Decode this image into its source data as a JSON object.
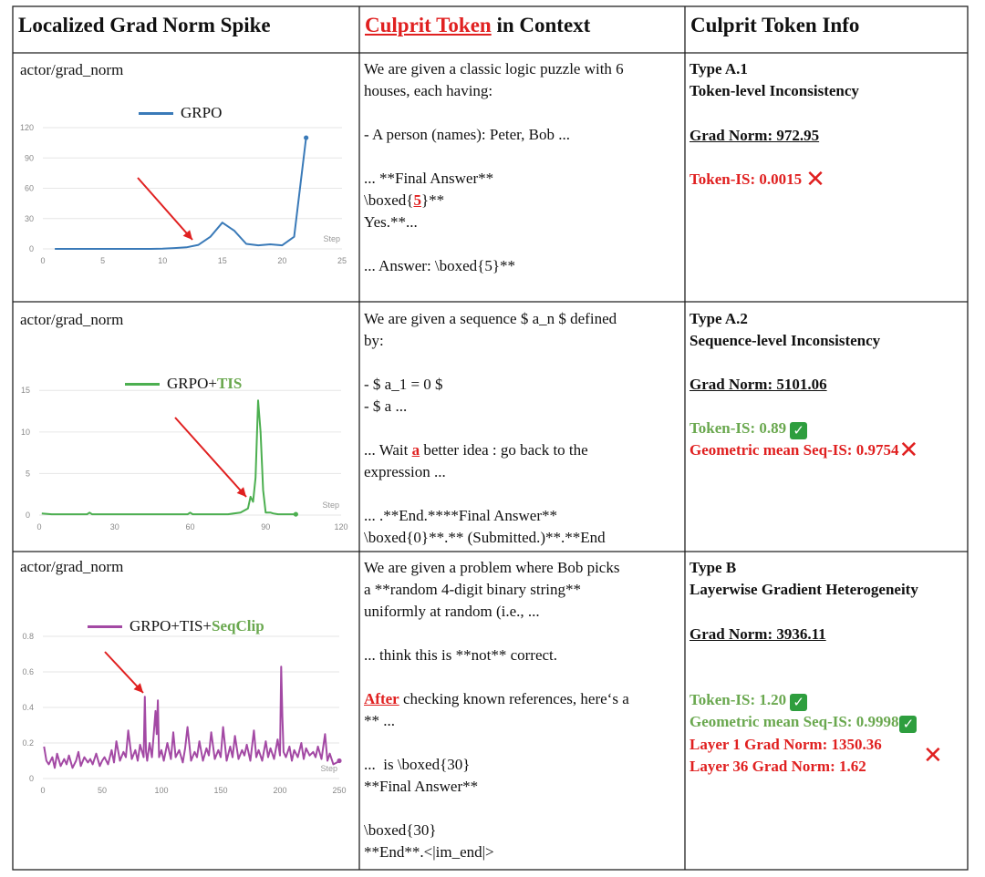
{
  "headers": {
    "col1": "Localized Grad Norm Spike",
    "col2_red": "Culprit Token",
    "col2_rest": " in Context",
    "col3": "Culprit Token Info"
  },
  "rows": [
    {
      "chart_title": "actor/grad_norm",
      "legend_label": "GRPO",
      "context": {
        "l1": "We are given a classic logic puzzle with 6",
        "l2": "houses, each having:",
        "l3": "- A person (names): Peter, Bob ...",
        "l4": "... **Final Answer**",
        "l5a": "\\boxed{",
        "l5tok": "5",
        "l5b": "}**",
        "l6": "Yes.**...",
        "l7": "... Answer: \\boxed{5}**"
      },
      "info": {
        "type": "Type A.1",
        "desc": "Token-level Inconsistency",
        "grad_norm": "Grad Norm: 972.95",
        "token_is": "Token-IS: 0.0015"
      }
    },
    {
      "chart_title": "actor/grad_norm",
      "legend_label_base": "GRPO+",
      "legend_label_accent": "TIS",
      "context": {
        "l1": "We are given a sequence $ a_n $ defined",
        "l2": "by:",
        "l3": "- $ a_1 = 0 $",
        "l4": "- $ a ...",
        "l5a": "... Wait ",
        "l5tok": "a",
        "l5b": " better idea : go back to the",
        "l6": "expression ...",
        "l7": "... .**End.****Final Answer**",
        "l8": "\\boxed{0}**.** (Submitted.)**.**End"
      },
      "info": {
        "type": "Type A.2",
        "desc": "Sequence-level Inconsistency",
        "grad_norm": "Grad Norm: 5101.06",
        "token_is": "Token-IS: 0.89",
        "seq_is": "Geometric mean Seq-IS: 0.9754"
      }
    },
    {
      "chart_title": "actor/grad_norm",
      "legend_label_base": "GRPO+TIS+",
      "legend_label_accent": "SeqClip",
      "context": {
        "l1": "We are given a problem where Bob picks",
        "l2": "a **random 4-digit binary string**",
        "l3": "uniformly at random (i.e., ...",
        "l4": "... think this is **not** correct.",
        "l5tok": "After",
        "l5b": " checking known references, here‘s a",
        "l6": "** ...",
        "l7": "...  is \\boxed{30}",
        "l8": "**Final Answer**",
        "l9": "\\boxed{30}",
        "l10": "**End**.<|im_end|>"
      },
      "info": {
        "type": "Type B",
        "desc": "Layerwise Gradient Heterogeneity",
        "grad_norm": "Grad Norm: 3936.11",
        "token_is": "Token-IS: 1.20",
        "seq_is": "Geometric mean Seq-IS: 0.9998",
        "layer1": "Layer 1 Grad Norm: 1350.36",
        "layer36": "Layer 36 Grad Norm: 1.62"
      }
    }
  ],
  "chart_data": [
    {
      "type": "line",
      "title": "actor/grad_norm",
      "xlabel": "Step",
      "ylabel": "",
      "xlim": [
        0,
        25
      ],
      "ylim": [
        0,
        120
      ],
      "xticks": [
        0,
        5,
        10,
        15,
        20,
        25
      ],
      "yticks": [
        0,
        30,
        60,
        90,
        120
      ],
      "color": "#3a7ab8",
      "series": [
        {
          "name": "GRPO",
          "x": [
            1,
            2,
            3,
            4,
            5,
            6,
            7,
            8,
            9,
            10,
            11,
            12,
            13,
            14,
            15,
            16,
            17,
            18,
            19,
            20,
            21,
            22
          ],
          "y": [
            0,
            0,
            0,
            0,
            0,
            0,
            0,
            0,
            0,
            0.3,
            0.8,
            1.5,
            4,
            12,
            26,
            18,
            5,
            3.5,
            4.5,
            3.5,
            12,
            110
          ]
        }
      ]
    },
    {
      "type": "line",
      "title": "actor/grad_norm",
      "xlabel": "Step",
      "ylabel": "",
      "xlim": [
        0,
        120
      ],
      "ylim": [
        0,
        17
      ],
      "xticks": [
        0,
        30,
        60,
        90,
        120
      ],
      "yticks": [
        0,
        5,
        10,
        15
      ],
      "color": "#4caf50",
      "series": [
        {
          "name": "GRPO+TIS",
          "x": [
            1,
            5,
            10,
            15,
            19,
            20,
            21,
            25,
            30,
            35,
            40,
            45,
            50,
            55,
            59,
            60,
            61,
            65,
            70,
            75,
            80,
            83,
            84,
            85,
            86,
            87,
            88,
            89,
            90,
            91,
            92,
            93,
            95,
            98,
            100,
            102
          ],
          "y": [
            0.2,
            0.1,
            0.1,
            0.1,
            0.1,
            0.3,
            0.1,
            0.1,
            0.1,
            0.1,
            0.1,
            0.1,
            0.1,
            0.1,
            0.1,
            0.3,
            0.1,
            0.1,
            0.1,
            0.1,
            0.3,
            0.8,
            2.2,
            1.6,
            4.5,
            13.8,
            10,
            3,
            0.3,
            0.3,
            0.3,
            0.2,
            0.1,
            0.1,
            0.1,
            0.1
          ]
        }
      ]
    },
    {
      "type": "line",
      "title": "actor/grad_norm",
      "xlabel": "Step",
      "ylabel": "",
      "xlim": [
        0,
        250
      ],
      "ylim": [
        0,
        0.8
      ],
      "xticks": [
        0,
        50,
        100,
        150,
        200,
        250
      ],
      "yticks": [
        0,
        0.2,
        0.4,
        0.6,
        0.8
      ],
      "color": "#a349a4",
      "series": [
        {
          "name": "GRPO+TIS+SeqClip",
          "x": [
            1,
            3,
            5,
            8,
            10,
            12,
            15,
            18,
            20,
            22,
            25,
            28,
            30,
            32,
            35,
            38,
            40,
            42,
            45,
            48,
            50,
            52,
            55,
            58,
            60,
            62,
            65,
            68,
            70,
            72,
            75,
            78,
            80,
            82,
            85,
            86,
            87,
            88,
            90,
            92,
            95,
            96,
            97,
            98,
            100,
            102,
            105,
            108,
            110,
            112,
            115,
            118,
            120,
            122,
            125,
            128,
            130,
            132,
            135,
            138,
            140,
            142,
            145,
            148,
            150,
            152,
            155,
            158,
            160,
            162,
            165,
            168,
            170,
            172,
            175,
            178,
            180,
            182,
            185,
            188,
            190,
            192,
            195,
            198,
            200,
            201,
            202,
            203,
            205,
            208,
            210,
            212,
            215,
            218,
            220,
            222,
            225,
            228,
            230,
            232,
            235,
            238,
            240,
            242,
            245,
            248,
            250
          ],
          "y": [
            0.18,
            0.1,
            0.08,
            0.12,
            0.06,
            0.14,
            0.07,
            0.11,
            0.08,
            0.13,
            0.06,
            0.1,
            0.15,
            0.07,
            0.12,
            0.09,
            0.11,
            0.08,
            0.14,
            0.07,
            0.1,
            0.12,
            0.08,
            0.16,
            0.09,
            0.21,
            0.1,
            0.15,
            0.12,
            0.27,
            0.11,
            0.16,
            0.1,
            0.19,
            0.12,
            0.46,
            0.15,
            0.1,
            0.2,
            0.12,
            0.38,
            0.25,
            0.44,
            0.12,
            0.16,
            0.1,
            0.2,
            0.11,
            0.26,
            0.12,
            0.16,
            0.09,
            0.17,
            0.29,
            0.1,
            0.15,
            0.12,
            0.21,
            0.1,
            0.17,
            0.13,
            0.26,
            0.11,
            0.16,
            0.12,
            0.29,
            0.1,
            0.18,
            0.12,
            0.24,
            0.11,
            0.16,
            0.13,
            0.19,
            0.1,
            0.27,
            0.12,
            0.16,
            0.1,
            0.21,
            0.12,
            0.17,
            0.11,
            0.22,
            0.13,
            0.63,
            0.35,
            0.15,
            0.12,
            0.18,
            0.1,
            0.16,
            0.12,
            0.2,
            0.11,
            0.17,
            0.13,
            0.15,
            0.12,
            0.18,
            0.11,
            0.25,
            0.1,
            0.14,
            0.08,
            0.09,
            0.1
          ]
        }
      ]
    }
  ]
}
